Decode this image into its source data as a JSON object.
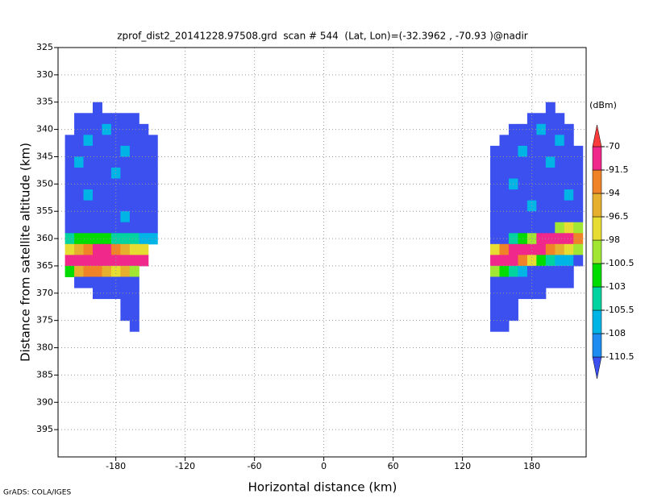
{
  "chart_data": {
    "type": "heatmap",
    "title": "zprof_dist2_20141228.97508.grd  scan # 544  (Lat, Lon)=(-32.3962 , -70.93 )@nadir",
    "x_label": "Horizontal distance (km)",
    "y_label": "Distance from satellite altitude (km)",
    "credit": "GrADS: COLA/IGES",
    "xlim": [
      -230,
      227
    ],
    "ylim": [
      325,
      400
    ],
    "y_reversed": true,
    "grid": true,
    "xticks": [
      -180,
      -120,
      -60,
      0,
      60,
      120,
      180
    ],
    "yticks": [
      325,
      330,
      335,
      340,
      345,
      350,
      355,
      360,
      365,
      370,
      375,
      380,
      385,
      390,
      395
    ],
    "cell_width": 8,
    "cell_height": 2,
    "x": [
      -220,
      -212,
      -204,
      -196,
      -188,
      -180,
      -172,
      -164,
      -156,
      -148,
      148,
      156,
      164,
      172,
      180,
      188,
      196,
      204,
      212,
      220
    ],
    "y": [
      336,
      338,
      340,
      342,
      344,
      346,
      348,
      350,
      352,
      354,
      356,
      358,
      360,
      362,
      364,
      366,
      368,
      370,
      372,
      374,
      376
    ],
    "z": [
      [
        null,
        null,
        null,
        -112,
        null,
        null,
        null,
        null,
        null,
        null,
        null,
        null,
        null,
        null,
        null,
        null,
        -112,
        null,
        null,
        null
      ],
      [
        null,
        -112,
        -112,
        -112,
        -112,
        -112,
        -112,
        -112,
        null,
        null,
        null,
        null,
        null,
        null,
        -112,
        -112,
        -112,
        -112,
        null,
        null
      ],
      [
        null,
        -112,
        -112,
        -112,
        -107,
        -112,
        -112,
        -112,
        -112,
        null,
        null,
        null,
        -112,
        -112,
        -112,
        -107,
        -112,
        -112,
        -112,
        null
      ],
      [
        -112,
        -112,
        -107,
        -112,
        -112,
        -112,
        -112,
        -112,
        -112,
        -112,
        null,
        -112,
        -112,
        -112,
        -112,
        -112,
        -112,
        -107,
        -112,
        null
      ],
      [
        -112,
        -112,
        -112,
        -112,
        -112,
        -112,
        -107,
        -112,
        -112,
        -112,
        -112,
        -112,
        -112,
        -107,
        -112,
        -112,
        -112,
        -112,
        -112,
        -112
      ],
      [
        -112,
        -107,
        -112,
        -112,
        -112,
        -112,
        -112,
        -112,
        -112,
        -112,
        -112,
        -112,
        -112,
        -112,
        -112,
        -112,
        -107,
        -112,
        -112,
        -112
      ],
      [
        -112,
        -112,
        -112,
        -112,
        -112,
        -107,
        -112,
        -112,
        -112,
        -112,
        -112,
        -112,
        -112,
        -112,
        -112,
        -112,
        -112,
        -112,
        -112,
        -112
      ],
      [
        -112,
        -112,
        -112,
        -112,
        -112,
        -112,
        -112,
        -112,
        -112,
        -112,
        -112,
        -112,
        -107,
        -112,
        -112,
        -112,
        -112,
        -112,
        -112,
        -112
      ],
      [
        -112,
        -112,
        -107,
        -112,
        -112,
        -112,
        -112,
        -112,
        -112,
        -112,
        -112,
        -112,
        -112,
        -112,
        -112,
        -112,
        -112,
        -112,
        -107,
        -112
      ],
      [
        -112,
        -112,
        -112,
        -112,
        -112,
        -112,
        -112,
        -112,
        -112,
        -112,
        -112,
        -112,
        -112,
        -112,
        -107,
        -112,
        -112,
        -112,
        -112,
        -112
      ],
      [
        -112,
        -112,
        -112,
        -112,
        -112,
        -112,
        -107,
        -112,
        -112,
        -112,
        -112,
        -112,
        -112,
        -112,
        -112,
        -112,
        -112,
        -112,
        -112,
        -112
      ],
      [
        -112,
        -112,
        -112,
        -112,
        -112,
        -112,
        -112,
        -112,
        -112,
        -112,
        -112,
        -112,
        -112,
        -112,
        -112,
        -112,
        -112,
        -100,
        -97,
        -100
      ],
      [
        -104,
        -102,
        -102,
        -102,
        -102,
        -104,
        -104,
        -104,
        -106,
        -107,
        -112,
        -112,
        -104,
        -102,
        -100,
        -88,
        -85,
        -85,
        -90,
        -94
      ],
      [
        -97,
        -95,
        -92,
        -90,
        -90,
        -92,
        -95,
        -97,
        -98,
        null,
        -97,
        -93,
        -90,
        -85,
        -88,
        -90,
        -92,
        -95,
        -97,
        -100
      ],
      [
        -88,
        -82,
        -80,
        -80,
        -82,
        -85,
        -82,
        -85,
        -90,
        null,
        -82,
        -80,
        -85,
        -92,
        -97,
        -102,
        -104,
        -106,
        -106,
        -112
      ],
      [
        -102,
        -95,
        -93,
        -93,
        -95,
        -97,
        -95,
        -100,
        null,
        null,
        -100,
        -102,
        -104,
        -106,
        -112,
        -112,
        -112,
        -112,
        -112,
        null
      ],
      [
        null,
        -112,
        -112,
        -112,
        -112,
        -112,
        -112,
        -112,
        null,
        null,
        -112,
        -112,
        -112,
        -112,
        -112,
        -112,
        -112,
        -112,
        -112,
        null
      ],
      [
        null,
        null,
        null,
        -112,
        -112,
        -112,
        -112,
        -112,
        null,
        null,
        -112,
        -112,
        -112,
        -112,
        -112,
        -112,
        null,
        null,
        null,
        null
      ],
      [
        null,
        null,
        null,
        null,
        null,
        null,
        -112,
        -112,
        null,
        null,
        -112,
        -112,
        -112,
        null,
        null,
        null,
        null,
        null,
        null,
        null
      ],
      [
        null,
        null,
        null,
        null,
        null,
        null,
        -112,
        -112,
        null,
        null,
        -112,
        -112,
        -112,
        null,
        null,
        null,
        null,
        null,
        null,
        null
      ],
      [
        null,
        null,
        null,
        null,
        null,
        null,
        null,
        -112,
        null,
        null,
        -112,
        -112,
        null,
        null,
        null,
        null,
        null,
        null,
        null,
        null
      ]
    ],
    "colorbar": {
      "unit": "(dBm)",
      "levels": [
        -110.5,
        -108,
        -105.5,
        -103,
        -100.5,
        -98,
        -96.5,
        -94,
        -91.5,
        -70
      ],
      "colors": [
        "#3c50f0",
        "#1e8cf0",
        "#00b4e6",
        "#00d2a0",
        "#00dc00",
        "#a0e632",
        "#e6dc32",
        "#e6af2d",
        "#f08228",
        "#f0288c",
        "#fa3c3c"
      ]
    }
  }
}
